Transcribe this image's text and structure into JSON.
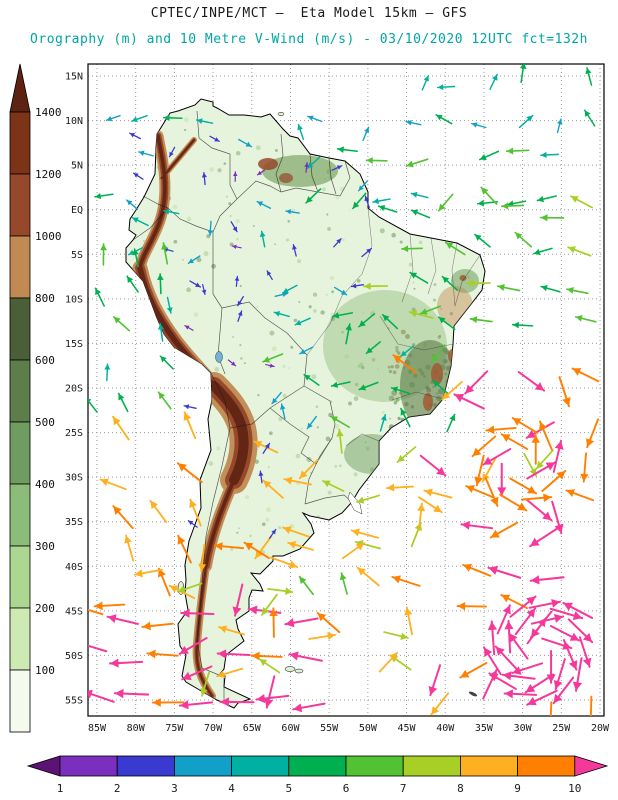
{
  "header": {
    "line1": "CPTEC/INPE/MCT —  Eta Model 15km — GFS",
    "line2": "Orography (m) and 10 Metre V-Wind (m/s) - 03/10/2020 12UTC fct=132h",
    "line2_color": "#00a6a6"
  },
  "elevation_legend": {
    "unit": "m",
    "arrow_color": "#5e2212",
    "labels_top_to_bottom": [
      "1400",
      "1200",
      "1000",
      "800",
      "600",
      "500",
      "400",
      "300",
      "200",
      "100"
    ],
    "segment_colors_top_to_bottom": [
      "#7c3318",
      "#96492a",
      "#c08a52",
      "#4a5f38",
      "#5d7d4a",
      "#6f9d5f",
      "#8cbd78",
      "#abd791",
      "#cdeab2",
      "#f4faee"
    ]
  },
  "wind_legend": {
    "unit": "m/s",
    "labels": [
      "1",
      "2",
      "3",
      "4",
      "5",
      "6",
      "7",
      "8",
      "9",
      "10"
    ],
    "palette": [
      "#5c1375",
      "#7b2fbe",
      "#3a3ad1",
      "#12a0c8",
      "#00b0a0",
      "#00b050",
      "#52c234",
      "#a8cf26",
      "#ffb020",
      "#ff7f00",
      "#f5399b"
    ]
  },
  "map_axes": {
    "lat_labels": [
      "15N",
      "10N",
      "5N",
      "EQ",
      "5S",
      "10S",
      "15S",
      "20S",
      "25S",
      "30S",
      "35S",
      "40S",
      "45S",
      "50S",
      "55S"
    ],
    "lon_labels": [
      "85W",
      "80W",
      "75W",
      "70W",
      "65W",
      "60W",
      "55W",
      "50W",
      "45W",
      "40W",
      "35W",
      "30W",
      "25W",
      "20W"
    ],
    "lat_range": [
      15,
      -55
    ],
    "lon_range_w": [
      85,
      20
    ],
    "grid_color": "#9b9b9b",
    "label_color": "#1a1a1a"
  },
  "wind_field": {
    "seed": 7,
    "regions": [
      {
        "name": "tropical-n-atlantic",
        "lon": [
          21,
          57
        ],
        "lat": [
          1.5,
          8.5
        ],
        "step": 4.3,
        "angle": 200,
        "jitter": 35,
        "speed": [
          4,
          6.4
        ],
        "skip": 0.12
      },
      {
        "name": "n-atlantic",
        "lon": [
          21,
          44
        ],
        "lat": [
          9,
          14.5
        ],
        "step": 4.4,
        "angle": 115,
        "jitter": 75,
        "speed": [
          3,
          5.4
        ],
        "skip": 0.15
      },
      {
        "name": "caribbean",
        "lon": [
          56,
          84
        ],
        "lat": [
          10.5,
          14.5
        ],
        "step": 4.4,
        "angle": 185,
        "jitter": 25,
        "speed": [
          3,
          5.2
        ],
        "skip": 0.15
      },
      {
        "name": "amazon-interior",
        "lon": [
          50,
          80
        ],
        "lat": [
          -9,
          8
        ],
        "step": 4.2,
        "angle": 90,
        "jitter": 180,
        "speed": [
          1,
          4
        ],
        "skip": 0.18
      },
      {
        "name": "ne-brazil",
        "lon": [
          21,
          48
        ],
        "lat": [
          -13,
          0
        ],
        "step": 4.3,
        "angle": 165,
        "jitter": 35,
        "speed": [
          4.6,
          7
        ],
        "skip": 0.12
      },
      {
        "name": "central-brazil",
        "lon": [
          40,
          62
        ],
        "lat": [
          -24,
          -10.5
        ],
        "step": 4.2,
        "angle": 150,
        "jitter": 85,
        "speed": [
          3,
          6
        ],
        "skip": 0.15
      },
      {
        "name": "sw-atlantic-trough",
        "lon": [
          21,
          47
        ],
        "lat": [
          -32,
          -15
        ],
        "step": 4.4,
        "angle": 235,
        "jitter": 95,
        "speed": [
          7,
          10.5
        ],
        "skip": 0.15
      },
      {
        "name": "s-atlantic",
        "lon": [
          21,
          43
        ],
        "lat": [
          -45,
          -33.5
        ],
        "step": 4.6,
        "angle": 190,
        "jitter": 55,
        "speed": [
          8.5,
          10.5
        ],
        "skip": 0.15
      },
      {
        "name": "southern-ocean",
        "lon": [
          56,
          85
        ],
        "lat": [
          -55,
          -44.5
        ],
        "step": 4.6,
        "angle": 183,
        "jitter": 22,
        "speed": [
          9.3,
          10.5
        ],
        "skip": 0.1
      },
      {
        "name": "patagonia-shelf",
        "lon": [
          44,
          64
        ],
        "lat": [
          -52,
          -37
        ],
        "step": 4.5,
        "angle": 80,
        "jitter": 110,
        "speed": [
          6,
          9
        ],
        "skip": 0.2
      },
      {
        "name": "subtropic-mixed",
        "lon": [
          44,
          62
        ],
        "lat": [
          -36,
          -26
        ],
        "step": 4.4,
        "angle": 150,
        "jitter": 90,
        "speed": [
          6,
          8.4
        ],
        "skip": 0.2
      },
      {
        "name": "pacific-chile",
        "lon": [
          72,
          85
        ],
        "lat": [
          -44,
          -25
        ],
        "step": 4.4,
        "angle": 150,
        "jitter": 45,
        "speed": [
          7.5,
          9.4
        ],
        "skip": 0.15
      },
      {
        "name": "humboldt",
        "lon": [
          76,
          85
        ],
        "lat": [
          -23,
          -4
        ],
        "step": 4.3,
        "angle": 115,
        "jitter": 40,
        "speed": [
          4,
          6.2
        ],
        "skip": 0.15
      },
      {
        "name": "andes-weak",
        "lon": [
          63,
          75
        ],
        "lat": [
          -36,
          -4
        ],
        "step": 4.6,
        "angle": 90,
        "jitter": 180,
        "speed": [
          1,
          3
        ],
        "skip": 0.3
      },
      {
        "name": "e-pacific-itcz",
        "lon": [
          78,
          85
        ],
        "lat": [
          -2,
          10
        ],
        "step": 4.3,
        "angle": 160,
        "jitter": 60,
        "speed": [
          3,
          5.2
        ],
        "skip": 0.2
      },
      {
        "name": "patagonia-land",
        "lon": [
          62,
          74
        ],
        "lat": [
          -52,
          -37
        ],
        "step": 4.6,
        "angle": 200,
        "jitter": 70,
        "speed": [
          7,
          10.3
        ],
        "skip": 0.25
      },
      {
        "name": "se-corner",
        "lon": [
          21,
          44
        ],
        "lat": [
          -55,
          -46
        ],
        "step": 4.8,
        "angle": 150,
        "jitter": 120,
        "speed": [
          8,
          10.5
        ],
        "skip": 0.45
      }
    ],
    "vortices": [
      {
        "name": "cyclone-south-atlantic",
        "lon": 28,
        "lat": -49.5,
        "radii": [
          13,
          28,
          44
        ],
        "counts": [
          5,
          9,
          13
        ],
        "spin": -1,
        "speed": [
          9.5,
          10.5
        ]
      },
      {
        "name": "anticyclone-subtropical",
        "lon": 30.5,
        "lat": -28.5,
        "radii": [
          17,
          36
        ],
        "counts": [
          6,
          10
        ],
        "spin": 1,
        "speed": [
          8.5,
          10.2
        ]
      }
    ]
  }
}
